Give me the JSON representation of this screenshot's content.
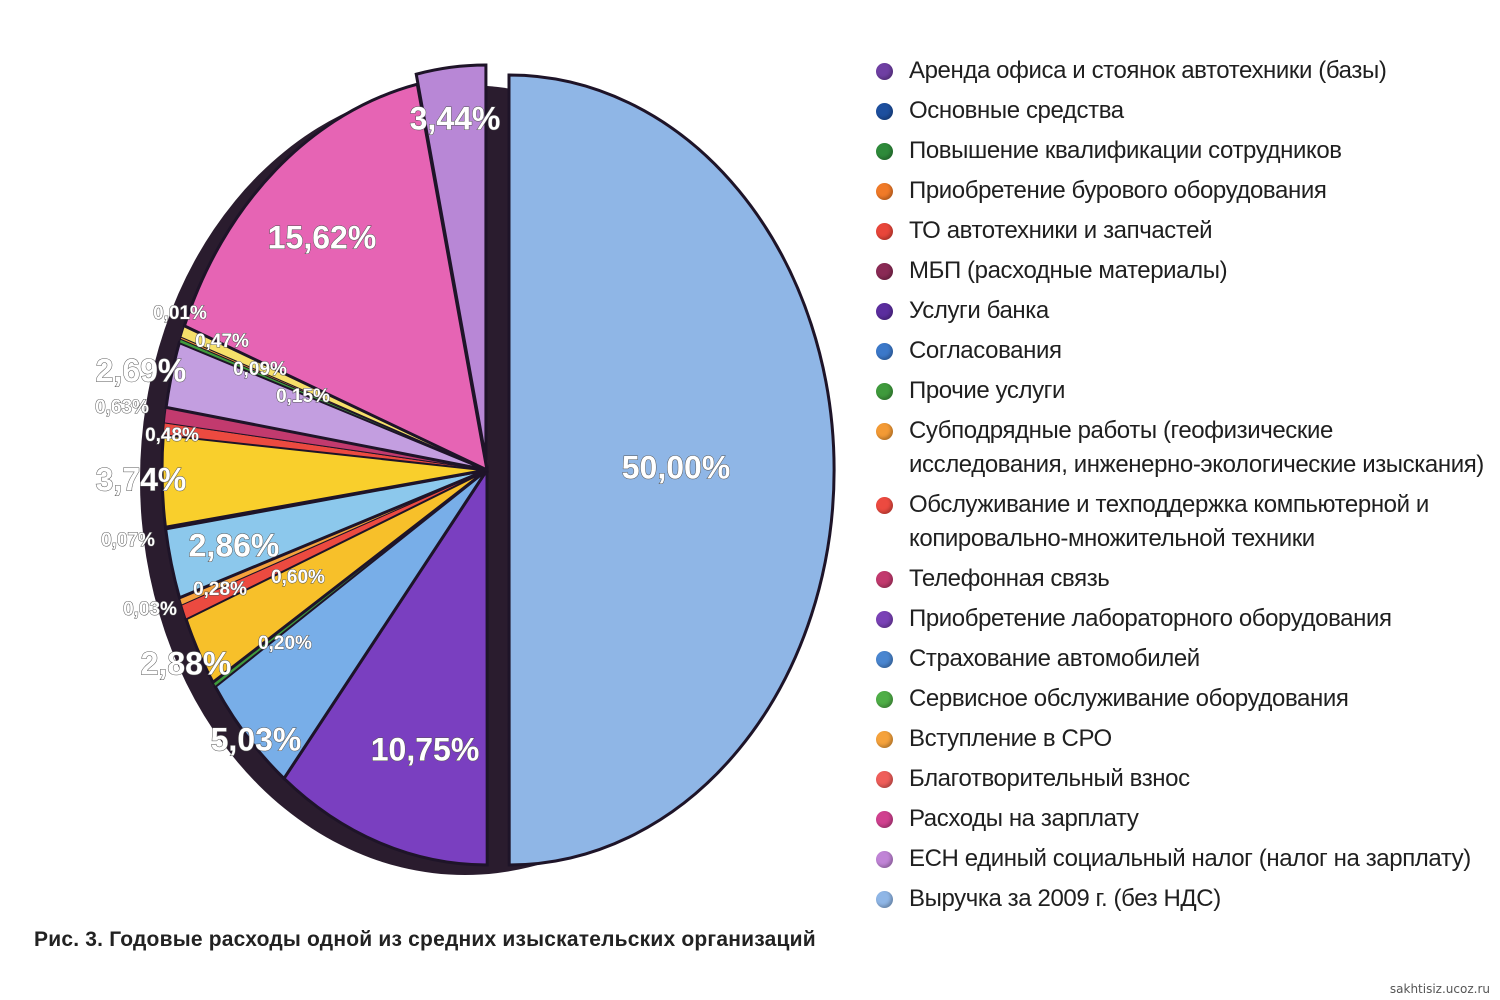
{
  "chart_data": {
    "type": "pie",
    "title": "",
    "caption": "Рис. 3. Годовые расходы одной из средних изыскательских организаций",
    "legend_position": "right",
    "slices": [
      {
        "legend": "Аренда офиса и стоянок автотехники (базы)",
        "label": "",
        "value": null,
        "color": "#6f3fa3"
      },
      {
        "legend": "Основные средства",
        "label": "",
        "value": null,
        "color": "#1d4f9e"
      },
      {
        "legend": "Повышение квалификации сотрудников",
        "label": "",
        "value": null,
        "color": "#2e8a3a"
      },
      {
        "legend": "Приобретение бурового оборудования",
        "label": "",
        "value": null,
        "color": "#f07a28"
      },
      {
        "legend": "ТО автотехники и запчастей",
        "label": "",
        "value": null,
        "color": "#e8463a"
      },
      {
        "legend": "МБП (расходные материалы)",
        "label": "",
        "value": null,
        "color": "#8a2a55"
      },
      {
        "legend": "Услуги банка",
        "label": "",
        "value": null,
        "color": "#5b2d9e"
      },
      {
        "legend": "Согласования",
        "label": "",
        "value": null,
        "color": "#3b78c9"
      },
      {
        "legend": "Прочие услуги",
        "label": "",
        "value": null,
        "color": "#3f9a3c"
      },
      {
        "legend": "Субподрядные работы (геофизические исследования, инженерно-экологические изыскания)",
        "label": "",
        "value": null,
        "color": "#f39a35"
      },
      {
        "legend": "Обслуживание и техподдержка компьютерной и копировально-множительной техники",
        "label": "",
        "value": null,
        "color": "#ec4a40"
      },
      {
        "legend": "Телефонная связь",
        "label": "",
        "value": null,
        "color": "#c23a6e"
      },
      {
        "legend": "Приобретение лабораторного оборудования",
        "label": "",
        "value": null,
        "color": "#7a42b6"
      },
      {
        "legend": "Страхование автомобилей",
        "label": "",
        "value": null,
        "color": "#4a86d0"
      },
      {
        "legend": "Сервисное обслуживание оборудования",
        "label": "",
        "value": null,
        "color": "#4fae47"
      },
      {
        "legend": "Вступление в СРО",
        "label": "",
        "value": null,
        "color": "#f5a23c"
      },
      {
        "legend": "Благотворительный взнос",
        "label": "",
        "value": null,
        "color": "#ef5e5a"
      },
      {
        "legend": "Расходы на зарплату",
        "label": "",
        "value": null,
        "color": "#d0418f"
      },
      {
        "legend": "ЕСН единый социальный налог (налог на зарплату)",
        "label": "",
        "value": null,
        "color": "#c084d6"
      },
      {
        "legend": "Выручка за 2009 г. (без НДС)",
        "label": "",
        "value": null,
        "color": "#8fb6e6"
      }
    ],
    "segments": [
      {
        "value": 50.0,
        "label": "50,00%",
        "color": "#8fb6e6",
        "label_size": 32
      },
      {
        "value": 10.75,
        "label": "10,75%",
        "color": "#7a3fc0",
        "label_size": 32
      },
      {
        "value": 5.03,
        "label": "5,03%",
        "color": "#78aee8",
        "label_size": 32
      },
      {
        "value": 0.2,
        "label": "0,20%",
        "color": "#3f9a3c",
        "label_size": 19
      },
      {
        "value": 2.88,
        "label": "2,88%",
        "color": "#f7c02a",
        "label_size": 32
      },
      {
        "value": 0.6,
        "label": "0,60%",
        "color": "#ec4a40",
        "label_size": 19
      },
      {
        "value": 0.28,
        "label": "0,28%",
        "color": "#f5a23c",
        "label_size": 19
      },
      {
        "value": 0.03,
        "label": "0,03%",
        "color": "#d0418f",
        "label_size": 19
      },
      {
        "value": 2.86,
        "label": "2,86%",
        "color": "#8cc8ec",
        "label_size": 32
      },
      {
        "value": 0.07,
        "label": "0,07%",
        "color": "#3f9a3c",
        "label_size": 19
      },
      {
        "value": 3.74,
        "label": "3,74%",
        "color": "#f9cf2c",
        "label_size": 32
      },
      {
        "value": 0.48,
        "label": "0,48%",
        "color": "#ec4a40",
        "label_size": 19
      },
      {
        "value": 0.63,
        "label": "0,63%",
        "color": "#c23a6e",
        "label_size": 19
      },
      {
        "value": 2.69,
        "label": "2,69%",
        "color": "#c39ee0",
        "label_size": 32
      },
      {
        "value": 0.15,
        "label": "0,15%",
        "color": "#3f9a3c",
        "label_size": 19
      },
      {
        "value": 0.09,
        "label": "0,09%",
        "color": "#f39a35",
        "label_size": 19
      },
      {
        "value": 0.47,
        "label": "0,47%",
        "color": "#f6e06a",
        "label_size": 19
      },
      {
        "value": 0.01,
        "label": "0,01%",
        "color": "#3b78c9",
        "label_size": 19
      },
      {
        "value": 15.62,
        "label": "15,62%",
        "color": "#e664b4",
        "label_size": 32
      },
      {
        "value": 3.44,
        "label": "3,44%",
        "color": "#b887d6",
        "label_size": 32
      }
    ]
  },
  "watermark": "sakhtisiz.ucoz.ru"
}
